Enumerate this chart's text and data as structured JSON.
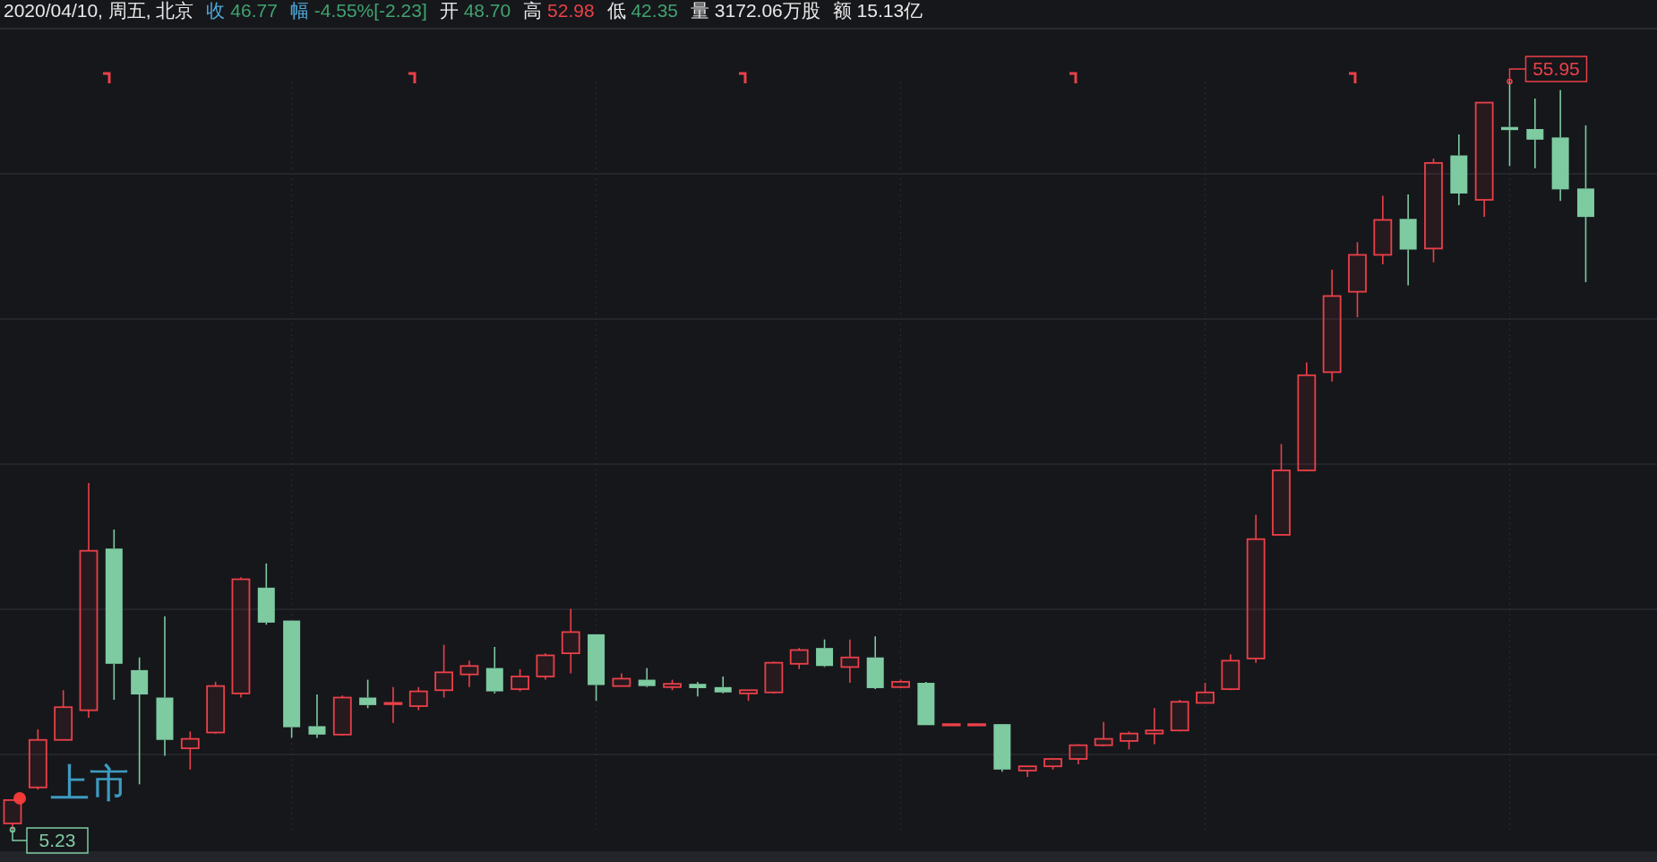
{
  "chart_data": {
    "type": "candlestick",
    "title": "2020/04/10, 周五, 北京",
    "annotations": [
      "收 46.77",
      "幅 -4.55%[-2.23]",
      "开 48.70",
      "高 52.98",
      "低 42.35",
      "量 3172.06万股",
      "额 15.13亿",
      "上市",
      "55.95",
      "5.23"
    ],
    "grid": true,
    "categories": [
      null,
      null,
      null,
      null,
      null,
      null,
      null,
      null,
      null,
      null,
      null,
      null,
      null,
      null,
      null,
      null,
      null,
      null,
      null,
      null,
      null,
      null,
      null,
      null,
      null,
      null,
      null,
      null,
      null,
      null,
      null,
      null,
      null,
      null,
      null,
      null,
      null,
      null,
      null,
      null,
      null,
      null,
      null,
      null,
      null,
      null,
      null,
      null,
      null,
      null,
      null,
      null,
      null,
      null,
      null,
      null,
      null,
      null,
      null,
      null,
      null,
      null,
      null
    ],
    "ohlc": [
      [
        5.66,
        7.24,
        5.23,
        7.24
      ],
      [
        8.1,
        12.04,
        7.95,
        11.32
      ],
      [
        11.32,
        14.69,
        11.32,
        13.54
      ],
      [
        13.33,
        28.73,
        12.82,
        24.14
      ],
      [
        24.29,
        25.58,
        14.04,
        16.48
      ],
      [
        16.05,
        16.91,
        8.31,
        14.4
      ],
      [
        14.19,
        19.7,
        10.24,
        11.32
      ],
      [
        10.75,
        11.89,
        9.31,
        11.39
      ],
      [
        11.82,
        15.26,
        11.75,
        14.97
      ],
      [
        14.47,
        22.35,
        14.19,
        22.21
      ],
      [
        21.64,
        23.28,
        19.13,
        19.27
      ],
      [
        19.41,
        19.41,
        11.46,
        12.18
      ],
      [
        12.25,
        14.4,
        11.46,
        11.68
      ],
      [
        11.68,
        14.33,
        11.61,
        14.19
      ],
      [
        14.19,
        15.4,
        13.47,
        13.68
      ],
      [
        13.76,
        14.9,
        12.47,
        13.83
      ],
      [
        13.61,
        14.9,
        13.33,
        14.61
      ],
      [
        14.69,
        17.77,
        14.19,
        15.9
      ],
      [
        15.76,
        16.69,
        14.9,
        16.33
      ],
      [
        16.19,
        17.62,
        14.47,
        14.61
      ],
      [
        14.76,
        16.12,
        14.61,
        15.62
      ],
      [
        15.62,
        17.19,
        15.4,
        17.05
      ],
      [
        17.19,
        20.2,
        15.83,
        18.63
      ],
      [
        18.48,
        18.48,
        13.97,
        15.04
      ],
      [
        14.97,
        15.83,
        14.97,
        15.47
      ],
      [
        15.4,
        16.19,
        14.9,
        14.97
      ],
      [
        14.9,
        15.4,
        14.69,
        15.12
      ],
      [
        15.12,
        15.26,
        14.26,
        14.83
      ],
      [
        14.9,
        15.62,
        14.47,
        14.54
      ],
      [
        14.47,
        14.69,
        13.97,
        14.69
      ],
      [
        14.54,
        16.62,
        14.47,
        16.55
      ],
      [
        16.48,
        17.55,
        16.12,
        17.41
      ],
      [
        17.55,
        18.13,
        16.26,
        16.33
      ],
      [
        16.26,
        18.13,
        15.19,
        16.91
      ],
      [
        16.91,
        18.34,
        14.76,
        14.83
      ],
      [
        14.9,
        15.4,
        14.83,
        15.26
      ],
      [
        15.19,
        15.26,
        12.32,
        12.32
      ],
      [
        12.39,
        12.39,
        12.39,
        12.39
      ],
      [
        12.39,
        12.39,
        12.39,
        12.39
      ],
      [
        12.39,
        12.39,
        9.17,
        9.31
      ],
      [
        9.24,
        9.53,
        8.81,
        9.53
      ],
      [
        9.53,
        10.1,
        9.31,
        10.03
      ],
      [
        10.03,
        11.03,
        9.67,
        10.96
      ],
      [
        10.96,
        12.54,
        10.89,
        11.39
      ],
      [
        11.25,
        11.89,
        10.67,
        11.75
      ],
      [
        11.75,
        13.47,
        11.03,
        11.96
      ],
      [
        11.96,
        14.04,
        11.89,
        13.9
      ],
      [
        13.83,
        15.19,
        13.83,
        14.54
      ],
      [
        14.76,
        17.12,
        14.69,
        16.69
      ],
      [
        16.84,
        26.58,
        16.55,
        24.93
      ],
      [
        25.22,
        31.38,
        25.22,
        29.59
      ],
      [
        29.59,
        36.9,
        29.52,
        36.04
      ],
      [
        36.25,
        43.2,
        35.61,
        41.41
      ],
      [
        41.7,
        45.06,
        39.97,
        44.2
      ],
      [
        44.2,
        48.21,
        43.56,
        46.57
      ],
      [
        46.64,
        48.29,
        42.13,
        44.56
      ],
      [
        44.63,
        50.72,
        43.7,
        50.43
      ],
      [
        50.94,
        52.37,
        47.57,
        48.36
      ],
      [
        47.93,
        54.52,
        46.78,
        54.52
      ],
      [
        52.87,
        55.95,
        50.22,
        52.66
      ],
      [
        52.73,
        54.8,
        50.08,
        52.01
      ],
      [
        52.16,
        55.38,
        47.86,
        48.64
      ],
      [
        48.7,
        52.98,
        42.35,
        46.77
      ]
    ],
    "colors": [
      "#eb4049",
      "#eb4049",
      "#eb4049",
      "#eb4049",
      "#7ecba1",
      "#7ecba1",
      "#7ecba1",
      "#eb4049",
      "#eb4049",
      "#eb4049",
      "#7ecba1",
      "#7ecba1",
      "#7ecba1",
      "#eb4049",
      "#7ecba1",
      "#eb4049",
      "#eb4049",
      "#eb4049",
      "#eb4049",
      "#7ecba1",
      "#eb4049",
      "#eb4049",
      "#eb4049",
      "#7ecba1",
      "#eb4049",
      "#7ecba1",
      "#eb4049",
      "#7ecba1",
      "#7ecba1",
      "#eb4049",
      "#eb4049",
      "#eb4049",
      "#7ecba1",
      "#eb4049",
      "#7ecba1",
      "#eb4049",
      "#7ecba1",
      "#eb4049",
      "#eb4049",
      "#7ecba1",
      "#eb4049",
      "#eb4049",
      "#eb4049",
      "#eb4049",
      "#eb4049",
      "#eb4049",
      "#eb4049",
      "#eb4049",
      "#eb4049",
      "#eb4049",
      "#eb4049",
      "#eb4049",
      "#eb4049",
      "#eb4049",
      "#eb4049",
      "#7ecba1",
      "#eb4049",
      "#7ecba1",
      "#eb4049",
      "#7ecba1",
      "#7ecba1",
      "#7ecba1",
      "#7ecba1"
    ]
  }
}
